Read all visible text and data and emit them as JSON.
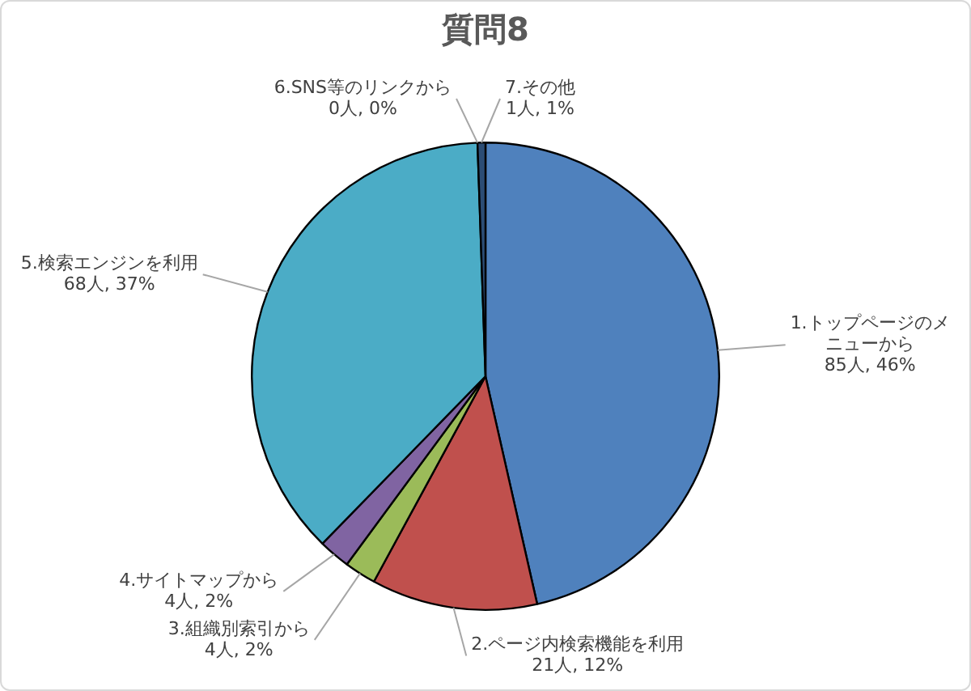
{
  "chart_data": {
    "type": "pie",
    "title": "質問8",
    "categories": [
      "1.トップページのメニューから",
      "2.ページ内検索機能を利用",
      "3.組織別索引から",
      "4.サイトマップから",
      "5.検索エンジンを利用",
      "6.SNS等のリンクから",
      "7.その他"
    ],
    "values": [
      85,
      21,
      4,
      4,
      68,
      0,
      1
    ],
    "colors": [
      "#4f81bd",
      "#c0504d",
      "#9bbb59",
      "#8064a2",
      "#4bacc6",
      "#f79646",
      "#2c4d75"
    ],
    "value_labels": [
      "85人, 46%",
      "21人, 12%",
      "4人, 2%",
      "4人, 2%",
      "68人, 37%",
      "0人, 0%",
      "1人, 1%"
    ],
    "legend": false
  }
}
